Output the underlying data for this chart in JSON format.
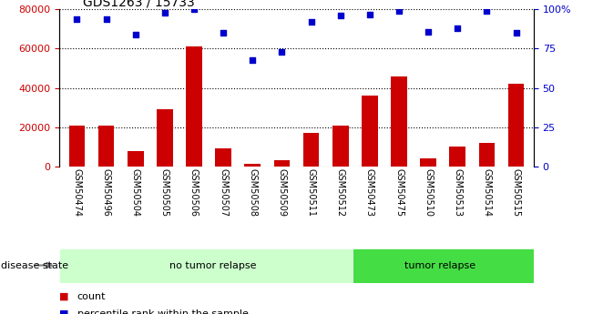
{
  "title": "GDS1263 / 15733",
  "samples": [
    "GSM50474",
    "GSM50496",
    "GSM50504",
    "GSM50505",
    "GSM50506",
    "GSM50507",
    "GSM50508",
    "GSM50509",
    "GSM50511",
    "GSM50512",
    "GSM50473",
    "GSM50475",
    "GSM50510",
    "GSM50513",
    "GSM50514",
    "GSM50515"
  ],
  "counts": [
    21000,
    21000,
    8000,
    29000,
    61000,
    9000,
    1500,
    3000,
    17000,
    21000,
    36000,
    46000,
    4000,
    10000,
    12000,
    42000
  ],
  "percentiles": [
    94,
    94,
    84,
    98,
    100,
    85,
    68,
    73,
    92,
    96,
    97,
    99,
    86,
    88,
    99,
    85
  ],
  "no_tumor_count": 10,
  "tumor_count": 6,
  "group1_label": "no tumor relapse",
  "group2_label": "tumor relapse",
  "disease_state_label": "disease state",
  "legend_count": "count",
  "legend_percentile": "percentile rank within the sample",
  "bar_color": "#cc0000",
  "dot_color": "#0000cc",
  "left_axis_color": "#cc0000",
  "right_axis_color": "#0000cc",
  "ylim_left": [
    0,
    80000
  ],
  "ylim_right": [
    0,
    100
  ],
  "yticks_left": [
    0,
    20000,
    40000,
    60000,
    80000
  ],
  "yticks_right": [
    0,
    25,
    50,
    75,
    100
  ],
  "ytick_labels_right": [
    "0",
    "25",
    "50",
    "75",
    "100%"
  ],
  "bg_color": "#ffffff",
  "xticklabel_bg": "#c8c8c8",
  "group1_bg": "#ccffcc",
  "group2_bg": "#44dd44"
}
